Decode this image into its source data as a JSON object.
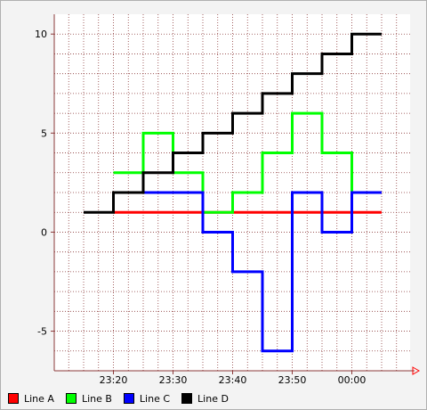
{
  "chart_data": {
    "type": "line",
    "step": true,
    "grid": true,
    "legend_position": "bottom-left",
    "title": "",
    "xlabel": "",
    "ylabel": "",
    "x": [
      "23:15",
      "23:20",
      "23:25",
      "23:30",
      "23:35",
      "23:40",
      "23:45",
      "23:50",
      "23:55",
      "00:00",
      "00:05"
    ],
    "x_ticks": [
      "23:20",
      "23:30",
      "23:40",
      "23:50",
      "00:00"
    ],
    "y_ticks": [
      -5,
      0,
      5,
      10
    ],
    "ylim": [
      -7,
      11
    ],
    "series": [
      {
        "name": "Line A",
        "color": "#ff0000",
        "values": [
          null,
          1,
          1,
          1,
          1,
          1,
          1,
          1,
          1,
          1,
          1
        ]
      },
      {
        "name": "Line B",
        "color": "#00ff00",
        "values": [
          null,
          3,
          5,
          3,
          1,
          2,
          4,
          6,
          4,
          2,
          2
        ]
      },
      {
        "name": "Line C",
        "color": "#0000ff",
        "values": [
          null,
          2,
          2,
          2,
          0,
          -2,
          -6,
          2,
          0,
          2,
          2
        ]
      },
      {
        "name": "Line D",
        "color": "#000000",
        "values": [
          1,
          2,
          3,
          4,
          5,
          6,
          7,
          8,
          9,
          10,
          10
        ]
      }
    ]
  }
}
